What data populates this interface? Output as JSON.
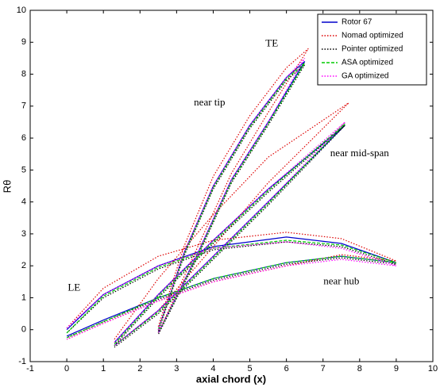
{
  "chart_data": {
    "type": "line",
    "x_label": "axial chord (x)",
    "y_label": "Rθ",
    "xlim": [
      -1,
      10
    ],
    "xticks": [
      -1,
      0,
      1,
      2,
      3,
      4,
      5,
      6,
      7,
      8,
      9,
      10
    ],
    "ylim": [
      -1,
      10
    ],
    "yticks": [
      -1,
      0,
      1,
      2,
      3,
      4,
      5,
      6,
      7,
      8,
      9,
      10
    ],
    "legend": "upper right",
    "annotations": [
      "TE",
      "near tip",
      "near mid-span",
      "LE",
      "near hub"
    ],
    "series": [
      {
        "name": "Rotor 67",
        "color": "#0000cc",
        "dash": "solid",
        "x": [
          0,
          1,
          2.5,
          4,
          6,
          7.5,
          9,
          7.5,
          6,
          4,
          2.5,
          1,
          0,
          null,
          1.3,
          2.5,
          4,
          5.5,
          7.6,
          5.5,
          4,
          2.5,
          1.3,
          null,
          2.5,
          3.2,
          4,
          5,
          6,
          6.5,
          5.5,
          4.5,
          3.5,
          2.5
        ],
        "values": [
          0,
          1.1,
          2.0,
          2.6,
          2.9,
          2.7,
          2.1,
          2.3,
          2.1,
          1.6,
          1.0,
          0.3,
          -0.2,
          null,
          -0.4,
          1.1,
          2.8,
          4.4,
          6.4,
          4.0,
          2.3,
          0.6,
          -0.5,
          null,
          0,
          2.4,
          4.5,
          6.4,
          7.9,
          8.4,
          6.5,
          4.7,
          2.2,
          -0.1
        ]
      },
      {
        "name": "Nomad optimized",
        "color": "#dd0000",
        "dash": "dotted",
        "x": [
          0,
          1,
          2.5,
          4,
          6,
          7.5,
          9,
          7.5,
          6,
          4,
          2.5,
          1,
          0,
          null,
          1.3,
          2.5,
          4,
          5.5,
          7.7,
          5.5,
          4,
          2.5,
          1.3,
          null,
          2.5,
          3.2,
          4,
          5,
          6,
          6.6,
          5.5,
          4.5,
          3.5,
          2.5
        ],
        "values": [
          0.05,
          1.3,
          2.3,
          2.8,
          3.05,
          2.85,
          2.15,
          2.35,
          2.0,
          1.5,
          0.9,
          0.2,
          -0.3,
          null,
          -0.3,
          1.6,
          3.6,
          5.4,
          7.1,
          4.6,
          2.6,
          0.6,
          -0.5,
          null,
          0.1,
          2.6,
          4.8,
          6.7,
          8.2,
          8.8,
          6.8,
          4.9,
          2.4,
          -0.1
        ]
      },
      {
        "name": "Pointer optimized",
        "color": "#000000",
        "dash": "dotted",
        "x": [
          0,
          1,
          2.5,
          4,
          6,
          7.5,
          9,
          7.5,
          6,
          4,
          2.5,
          1,
          0,
          null,
          1.3,
          2.5,
          4,
          5.5,
          7.6,
          5.5,
          4,
          2.5,
          1.3,
          null,
          2.5,
          3.2,
          4,
          5,
          6,
          6.5,
          5.5,
          4.5,
          3.5,
          2.5
        ],
        "values": [
          -0.1,
          1.0,
          1.9,
          2.5,
          2.75,
          2.6,
          2.05,
          2.25,
          2.05,
          1.55,
          0.95,
          0.25,
          -0.25,
          null,
          -0.5,
          1.0,
          2.7,
          4.3,
          6.4,
          3.9,
          2.2,
          0.5,
          -0.55,
          null,
          -0.05,
          2.3,
          4.4,
          6.3,
          7.8,
          8.3,
          6.4,
          4.6,
          2.1,
          -0.15
        ]
      },
      {
        "name": "ASA optimized",
        "color": "#00cc00",
        "dash": "dashed",
        "x": [
          0,
          1,
          2.5,
          4,
          6,
          7.5,
          9,
          7.5,
          6,
          4,
          2.5,
          1,
          0,
          null,
          1.3,
          2.5,
          4,
          5.5,
          7.6,
          5.5,
          4,
          2.5,
          1.3,
          null,
          2.5,
          3.2,
          4,
          5,
          6,
          6.5,
          5.5,
          4.5,
          3.5,
          2.5
        ],
        "values": [
          -0.1,
          1.05,
          1.95,
          2.55,
          2.8,
          2.65,
          2.1,
          2.3,
          2.1,
          1.6,
          1.0,
          0.25,
          -0.25,
          null,
          -0.45,
          1.05,
          2.75,
          4.35,
          6.45,
          3.95,
          2.25,
          0.55,
          -0.5,
          null,
          0,
          2.35,
          4.45,
          6.35,
          7.85,
          8.35,
          6.45,
          4.65,
          2.15,
          -0.1
        ]
      },
      {
        "name": "GA optimized",
        "color": "#ff00ff",
        "dash": "dotted",
        "x": [
          0,
          1,
          2.5,
          4,
          6,
          7.5,
          9,
          7.5,
          6,
          4,
          2.5,
          1,
          0,
          null,
          1.3,
          2.5,
          4,
          5.5,
          7.6,
          5.5,
          4,
          2.5,
          1.3,
          null,
          2.5,
          3.2,
          4,
          5,
          6,
          6.5,
          5.5,
          4.5,
          3.5,
          2.5
        ],
        "values": [
          0.05,
          1.1,
          2.0,
          2.55,
          2.75,
          2.55,
          2.0,
          2.2,
          2.0,
          1.5,
          0.9,
          0.2,
          -0.3,
          null,
          -0.4,
          1.1,
          2.8,
          4.4,
          6.5,
          4.0,
          2.3,
          0.6,
          -0.5,
          null,
          0,
          2.4,
          4.5,
          6.4,
          7.9,
          8.5,
          6.5,
          4.7,
          2.2,
          -0.1
        ]
      }
    ]
  }
}
